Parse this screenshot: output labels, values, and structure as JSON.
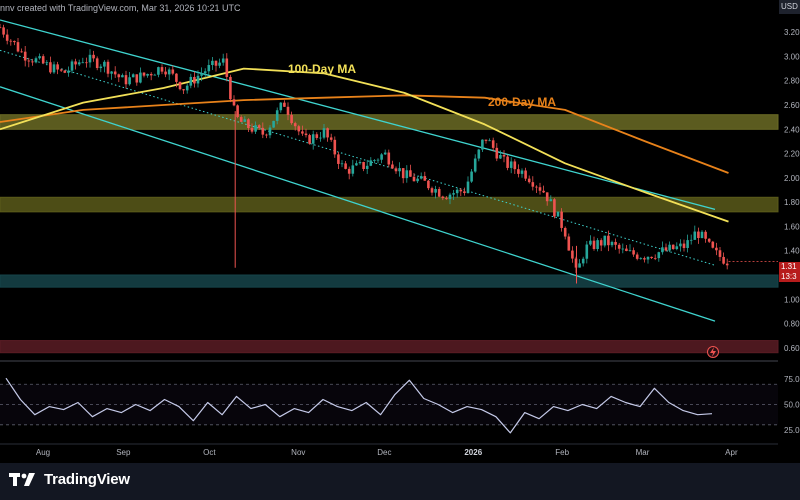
{
  "header": {
    "note": "nnv created with TradingView.com, Mar 31, 2026 10:21 UTC",
    "currency": "USD"
  },
  "brand": {
    "name": "TradingView"
  },
  "colors": {
    "background": "#000000",
    "candle_up": "#26a69a",
    "candle_down": "#ef5350",
    "wick": "#d1d4dc",
    "ma100": "#f2e058",
    "ma200": "#e8821a",
    "channel": "#3fd4cf",
    "zone_yellow": "#5a5a1a",
    "zone_olive": "#6b6b25",
    "zone_teal": "#16444a",
    "zone_red": "#5a1c24",
    "rsi": "#c5cae9"
  },
  "labels": {
    "ma100": "100-Day MA",
    "ma200": "200-Day MA"
  },
  "price_tags": {
    "last": "1.31",
    "countdown": "13:3"
  },
  "chart_data": [
    {
      "type": "candlestick",
      "y_ticks": [
        "3.20",
        "3.00",
        "2.80",
        "2.60",
        "2.40",
        "2.20",
        "2.00",
        "1.80",
        "1.60",
        "1.40",
        "1.20",
        "1.00",
        "0.80",
        "0.60"
      ],
      "x_ticks": [
        "Aug",
        "Sep",
        "Oct",
        "Nov",
        "Dec",
        "2026",
        "Feb",
        "Mar",
        "Apr"
      ],
      "ylim": [
        0.5,
        3.3
      ],
      "series_path": [
        [
          "Jul 20",
          3.24
        ],
        [
          "Jul 28",
          3.02
        ],
        [
          "Aug 4",
          2.94
        ],
        [
          "Aug 11",
          2.86
        ],
        [
          "Aug 18",
          2.98
        ],
        [
          "Aug 25",
          2.94
        ],
        [
          "Sep 1",
          2.8
        ],
        [
          "Sep 8",
          2.84
        ],
        [
          "Sep 15",
          2.92
        ],
        [
          "Sep 22",
          2.74
        ],
        [
          "Sep 29",
          2.88
        ],
        [
          "Oct 6",
          2.96
        ],
        [
          "Oct 10",
          2.5
        ],
        [
          "Oct 13",
          2.44
        ],
        [
          "Oct 20",
          2.36
        ],
        [
          "Oct 27",
          2.62
        ],
        [
          "Nov 3",
          2.3
        ],
        [
          "Nov 10",
          2.38
        ],
        [
          "Nov 17",
          2.06
        ],
        [
          "Nov 24",
          2.1
        ],
        [
          "Dec 1",
          2.2
        ],
        [
          "Dec 8",
          2.02
        ],
        [
          "Dec 15",
          1.96
        ],
        [
          "Dec 22",
          1.86
        ],
        [
          "Dec 29",
          1.9
        ],
        [
          "Jan 5",
          2.34
        ],
        [
          "Jan 12",
          2.12
        ],
        [
          "Jan 19",
          2.04
        ],
        [
          "Jan 26",
          1.88
        ],
        [
          "Feb 2",
          1.56
        ],
        [
          "Feb 6",
          1.2
        ],
        [
          "Feb 9",
          1.42
        ],
        [
          "Feb 16",
          1.48
        ],
        [
          "Feb 23",
          1.38
        ],
        [
          "Mar 2",
          1.36
        ],
        [
          "Mar 9",
          1.4
        ],
        [
          "Mar 16",
          1.44
        ],
        [
          "Mar 20",
          1.56
        ],
        [
          "Mar 26",
          1.38
        ],
        [
          "Mar 31",
          1.31
        ]
      ],
      "ma100": [
        [
          "Jul 20",
          2.4
        ],
        [
          "Aug 18",
          2.62
        ],
        [
          "Sep 15",
          2.74
        ],
        [
          "Oct 13",
          2.9
        ],
        [
          "Nov 10",
          2.86
        ],
        [
          "Dec 8",
          2.7
        ],
        [
          "Jan 5",
          2.44
        ],
        [
          "Feb 2",
          2.12
        ],
        [
          "Mar 2",
          1.88
        ],
        [
          "Mar 31",
          1.64
        ]
      ],
      "ma200": [
        [
          "Jul 20",
          2.46
        ],
        [
          "Aug 18",
          2.56
        ],
        [
          "Sep 15",
          2.6
        ],
        [
          "Oct 13",
          2.64
        ],
        [
          "Nov 10",
          2.66
        ],
        [
          "Dec 8",
          2.68
        ],
        [
          "Jan 5",
          2.66
        ],
        [
          "Feb 2",
          2.56
        ],
        [
          "Mar 2",
          2.3
        ],
        [
          "Mar 31",
          2.04
        ]
      ],
      "zones": [
        {
          "from": 2.4,
          "to": 2.52,
          "color": "zone_olive"
        },
        {
          "from": 1.72,
          "to": 1.84,
          "color": "zone_yellow"
        },
        {
          "from": 1.1,
          "to": 1.2,
          "color": "zone_teal"
        },
        {
          "from": 0.56,
          "to": 0.66,
          "color": "zone_red"
        }
      ],
      "channel": {
        "upper": [
          [
            "Jul 20",
            3.3
          ],
          [
            "Mar 31",
            1.74
          ]
        ],
        "lower": [
          [
            "Jul 20",
            2.75
          ],
          [
            "Mar 31",
            0.82
          ]
        ],
        "mid": [
          [
            "Jul 20",
            3.05
          ],
          [
            "Mar 31",
            1.28
          ]
        ]
      }
    },
    {
      "type": "line",
      "name": "RSI",
      "y_ticks": [
        "75.00",
        "50.00",
        "25.00"
      ],
      "ylim": [
        15,
        90
      ],
      "values": [
        76,
        55,
        40,
        48,
        45,
        52,
        38,
        46,
        42,
        50,
        44,
        55,
        48,
        34,
        52,
        40,
        58,
        46,
        50,
        38,
        46,
        42,
        55,
        48,
        44,
        52,
        40,
        60,
        74,
        56,
        50,
        42,
        48,
        45,
        38,
        22,
        42,
        36,
        48,
        44,
        50,
        46,
        58,
        52,
        48,
        66,
        52,
        44,
        40,
        41
      ]
    }
  ]
}
